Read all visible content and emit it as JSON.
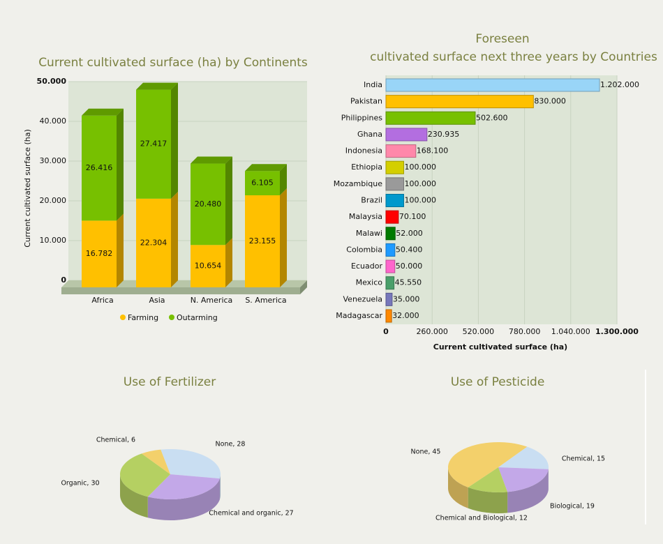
{
  "chart_data": [
    {
      "type": "stacked-bar-3d",
      "title": "Current cultivated surface (ha) by Continents",
      "y_label": "Current cultivated surface (ha)",
      "categories": [
        "Africa",
        "Asia",
        "N. America",
        "S. America"
      ],
      "series": [
        {
          "name": "Farming",
          "color": "#ffc000",
          "values": [
            16782,
            22304,
            10654,
            23155
          ],
          "value_labels": [
            "16.782",
            "22.304",
            "10.654",
            "23.155"
          ]
        },
        {
          "name": "Outarming",
          "color": "#77c000",
          "values": [
            26416,
            27417,
            20480,
            6105
          ],
          "value_labels": [
            "26.416",
            "27.417",
            "20.480",
            "6.105"
          ]
        }
      ],
      "ylim": [
        0,
        50000
      ],
      "yticks": [
        0,
        {
          "value": 10000,
          "label": "10.000"
        },
        {
          "value": 20000,
          "label": "20.000"
        },
        {
          "value": 30000,
          "label": "30.000"
        },
        {
          "value": 40000,
          "label": "40.000"
        },
        {
          "value": 50000,
          "label": "50.000"
        }
      ],
      "grid": true
    },
    {
      "type": "hbar",
      "title": [
        "Foreseen",
        "cultivated surface next three years by Countries"
      ],
      "x_label": "Current cultivated surface (ha)",
      "categories": [
        "India",
        "Pakistan",
        "Philippines",
        "Ghana",
        "Indonesia",
        "Ethiopia",
        "Mozambique",
        "Brazil",
        "Malaysia",
        "Malawi",
        "Colombia",
        "Ecuador",
        "Mexico",
        "Venezuela",
        "Madagascar"
      ],
      "values": [
        1202000,
        830000,
        502600,
        230935,
        168100,
        100000,
        100000,
        100000,
        70100,
        52000,
        50400,
        50000,
        45550,
        35000,
        32000
      ],
      "value_labels": [
        "1.202.000",
        "830.000",
        "502.600",
        "230.935",
        "168.100",
        "100.000",
        "100.000",
        "100.000",
        "70.100",
        "52.000",
        "50.400",
        "50.000",
        "45.550",
        "35.000",
        "32.000"
      ],
      "colors": [
        "#99d5f7",
        "#ffc000",
        "#77c000",
        "#b36ee0",
        "#ff88aa",
        "#d4cf00",
        "#9a9a9a",
        "#0099cc",
        "#ff0000",
        "#007a00",
        "#1e9aff",
        "#ff66cc",
        "#4a9f6a",
        "#7777bb",
        "#ff8800"
      ],
      "xlim": [
        0,
        1300000
      ],
      "xticks": [
        0,
        {
          "value": 260000,
          "label": "260.000"
        },
        {
          "value": 520000,
          "label": "520.000"
        },
        {
          "value": 780000,
          "label": "780.000"
        },
        {
          "value": 1040000,
          "label": "1.040.000"
        },
        {
          "value": 1300000,
          "label": "1.300.000"
        }
      ],
      "grid": true
    },
    {
      "type": "pie-3d",
      "title": "Use of Fertilizer",
      "values": [
        28,
        27,
        30,
        6
      ],
      "value_labels": [
        "None, 28",
        "Chemical and organic, 27",
        "Organic, 30",
        "Chemical, 6"
      ],
      "colors": [
        "#c9def2",
        "#c3a8e8",
        "#b5d062",
        "#f3d06b"
      ]
    },
    {
      "type": "pie-3d",
      "title": "Use of Pesticide",
      "values": [
        15,
        19,
        12,
        45
      ],
      "value_labels": [
        "Chemical, 15",
        "Biological, 19",
        "Chemical and Biological, 12",
        "None, 45"
      ],
      "colors": [
        "#c9def2",
        "#c3a8e8",
        "#b5d062",
        "#f3d06b"
      ]
    }
  ]
}
